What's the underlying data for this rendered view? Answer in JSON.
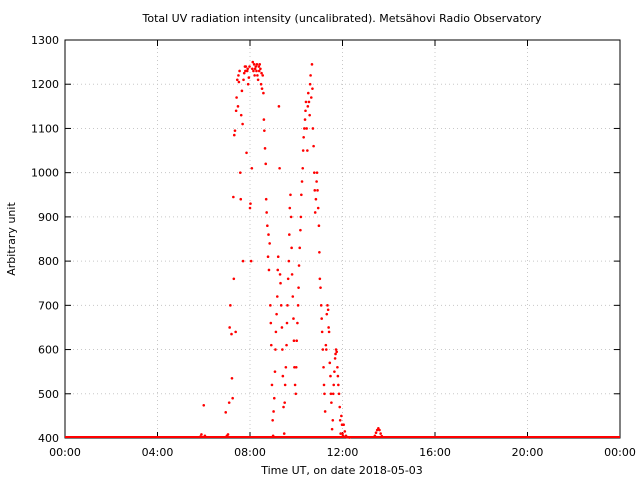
{
  "chart_data": {
    "type": "scatter",
    "title": "Total UV radiation intensity (uncalibrated). Metsähovi Radio Observatory",
    "xlabel": "Time UT, on date 2018-05-03",
    "ylabel": "Arbitrary unit",
    "x_unit": "hour UT",
    "xlim": [
      0,
      24
    ],
    "ylim": [
      400,
      1300
    ],
    "x_ticks": [
      0,
      4,
      8,
      12,
      16,
      20,
      24
    ],
    "x_tick_labels": [
      "00:00",
      "04:00",
      "08:00",
      "12:00",
      "16:00",
      "20:00",
      "00:00"
    ],
    "y_ticks": [
      400,
      500,
      600,
      700,
      800,
      900,
      1000,
      1100,
      1200,
      1300
    ],
    "y_tick_labels": [
      "400",
      "500",
      "600",
      "700",
      "800",
      "900",
      "1000",
      "1100",
      "1200",
      "1300"
    ],
    "grid": true,
    "legend": "none",
    "marker_color": "#ff0000",
    "series": [
      {
        "baseline": {
          "x_range": [
            0,
            24
          ],
          "y": 400
        },
        "points": [
          [
            5.85,
            403
          ],
          [
            5.9,
            408
          ],
          [
            6.0,
            474
          ],
          [
            6.05,
            405
          ],
          [
            6.95,
            458
          ],
          [
            7.0,
            405
          ],
          [
            7.05,
            408
          ],
          [
            7.1,
            480
          ],
          [
            7.12,
            650
          ],
          [
            7.15,
            700
          ],
          [
            7.2,
            635
          ],
          [
            7.22,
            535
          ],
          [
            7.25,
            490
          ],
          [
            7.28,
            945
          ],
          [
            7.3,
            760
          ],
          [
            7.32,
            1085
          ],
          [
            7.35,
            1095
          ],
          [
            7.38,
            640
          ],
          [
            7.4,
            1140
          ],
          [
            7.42,
            1170
          ],
          [
            7.45,
            1210
          ],
          [
            7.48,
            1150
          ],
          [
            7.5,
            1220
          ],
          [
            7.52,
            1205
          ],
          [
            7.55,
            1230
          ],
          [
            7.58,
            1000
          ],
          [
            7.6,
            940
          ],
          [
            7.62,
            1130
          ],
          [
            7.65,
            1185
          ],
          [
            7.68,
            1110
          ],
          [
            7.7,
            800
          ],
          [
            7.72,
            1210
          ],
          [
            7.75,
            1225
          ],
          [
            7.78,
            1240
          ],
          [
            7.8,
            1230
          ],
          [
            7.82,
            1240
          ],
          [
            7.85,
            1045
          ],
          [
            7.88,
            1230
          ],
          [
            7.9,
            1235
          ],
          [
            7.92,
            1200
          ],
          [
            7.95,
            1215
          ],
          [
            7.98,
            1240
          ],
          [
            8.0,
            920
          ],
          [
            8.02,
            930
          ],
          [
            8.05,
            800
          ],
          [
            8.08,
            1010
          ],
          [
            8.1,
            1235
          ],
          [
            8.12,
            1250
          ],
          [
            8.15,
            1230
          ],
          [
            8.18,
            1245
          ],
          [
            8.2,
            1220
          ],
          [
            8.22,
            1235
          ],
          [
            8.25,
            1240
          ],
          [
            8.28,
            1230
          ],
          [
            8.3,
            1245
          ],
          [
            8.32,
            1220
          ],
          [
            8.35,
            1210
          ],
          [
            8.38,
            1240
          ],
          [
            8.4,
            1230
          ],
          [
            8.42,
            1245
          ],
          [
            8.45,
            1235
          ],
          [
            8.48,
            1200
          ],
          [
            8.5,
            1225
          ],
          [
            8.52,
            1190
          ],
          [
            8.55,
            1220
          ],
          [
            8.58,
            1180
          ],
          [
            8.6,
            1120
          ],
          [
            8.62,
            1095
          ],
          [
            8.65,
            1055
          ],
          [
            8.68,
            1020
          ],
          [
            8.7,
            940
          ],
          [
            8.72,
            910
          ],
          [
            8.75,
            880
          ],
          [
            8.78,
            810
          ],
          [
            8.8,
            860
          ],
          [
            8.82,
            780
          ],
          [
            8.85,
            840
          ],
          [
            8.88,
            700
          ],
          [
            8.9,
            660
          ],
          [
            8.92,
            610
          ],
          [
            8.95,
            520
          ],
          [
            8.98,
            440
          ],
          [
            9.0,
            405
          ],
          [
            9.02,
            460
          ],
          [
            9.05,
            490
          ],
          [
            9.08,
            550
          ],
          [
            9.1,
            600
          ],
          [
            9.12,
            640
          ],
          [
            9.15,
            680
          ],
          [
            9.18,
            720
          ],
          [
            9.2,
            780
          ],
          [
            9.22,
            810
          ],
          [
            9.25,
            1150
          ],
          [
            9.28,
            1010
          ],
          [
            9.3,
            770
          ],
          [
            9.32,
            750
          ],
          [
            9.35,
            700
          ],
          [
            9.38,
            650
          ],
          [
            9.4,
            600
          ],
          [
            9.42,
            540
          ],
          [
            9.45,
            470
          ],
          [
            9.48,
            410
          ],
          [
            9.5,
            480
          ],
          [
            9.52,
            520
          ],
          [
            9.55,
            560
          ],
          [
            9.58,
            610
          ],
          [
            9.6,
            660
          ],
          [
            9.62,
            700
          ],
          [
            9.65,
            760
          ],
          [
            9.68,
            800
          ],
          [
            9.7,
            860
          ],
          [
            9.72,
            920
          ],
          [
            9.75,
            950
          ],
          [
            9.78,
            900
          ],
          [
            9.8,
            830
          ],
          [
            9.82,
            770
          ],
          [
            9.85,
            720
          ],
          [
            9.88,
            670
          ],
          [
            9.9,
            620
          ],
          [
            9.92,
            560
          ],
          [
            9.95,
            520
          ],
          [
            9.98,
            500
          ],
          [
            10.0,
            560
          ],
          [
            10.02,
            620
          ],
          [
            10.05,
            660
          ],
          [
            10.08,
            700
          ],
          [
            10.1,
            740
          ],
          [
            10.12,
            790
          ],
          [
            10.15,
            830
          ],
          [
            10.18,
            870
          ],
          [
            10.2,
            900
          ],
          [
            10.22,
            950
          ],
          [
            10.25,
            980
          ],
          [
            10.28,
            1010
          ],
          [
            10.3,
            1050
          ],
          [
            10.32,
            1080
          ],
          [
            10.35,
            1100
          ],
          [
            10.38,
            1120
          ],
          [
            10.4,
            1140
          ],
          [
            10.42,
            1160
          ],
          [
            10.45,
            1100
          ],
          [
            10.48,
            1050
          ],
          [
            10.5,
            1150
          ],
          [
            10.52,
            1180
          ],
          [
            10.55,
            1160
          ],
          [
            10.58,
            1130
          ],
          [
            10.6,
            1200
          ],
          [
            10.62,
            1220
          ],
          [
            10.65,
            1170
          ],
          [
            10.68,
            1245
          ],
          [
            10.7,
            1190
          ],
          [
            10.72,
            1100
          ],
          [
            10.75,
            1060
          ],
          [
            10.78,
            1000
          ],
          [
            10.8,
            960
          ],
          [
            10.82,
            910
          ],
          [
            10.85,
            940
          ],
          [
            10.88,
            980
          ],
          [
            10.9,
            1000
          ],
          [
            10.92,
            960
          ],
          [
            10.95,
            920
          ],
          [
            10.98,
            880
          ],
          [
            11.0,
            820
          ],
          [
            11.02,
            760
          ],
          [
            11.05,
            740
          ],
          [
            11.08,
            700
          ],
          [
            11.1,
            670
          ],
          [
            11.12,
            640
          ],
          [
            11.15,
            600
          ],
          [
            11.18,
            560
          ],
          [
            11.2,
            520
          ],
          [
            11.22,
            500
          ],
          [
            11.25,
            460
          ],
          [
            11.28,
            610
          ],
          [
            11.3,
            600
          ],
          [
            11.32,
            680
          ],
          [
            11.35,
            700
          ],
          [
            11.38,
            690
          ],
          [
            11.4,
            650
          ],
          [
            11.42,
            640
          ],
          [
            11.45,
            570
          ],
          [
            11.48,
            540
          ],
          [
            11.5,
            500
          ],
          [
            11.52,
            480
          ],
          [
            11.55,
            420
          ],
          [
            11.58,
            440
          ],
          [
            11.6,
            500
          ],
          [
            11.62,
            520
          ],
          [
            11.65,
            550
          ],
          [
            11.68,
            580
          ],
          [
            11.7,
            590
          ],
          [
            11.72,
            600
          ],
          [
            11.75,
            595
          ],
          [
            11.78,
            560
          ],
          [
            11.8,
            540
          ],
          [
            11.82,
            520
          ],
          [
            11.85,
            500
          ],
          [
            11.88,
            470
          ],
          [
            11.9,
            440
          ],
          [
            11.92,
            410
          ],
          [
            11.95,
            450
          ],
          [
            11.98,
            430
          ],
          [
            12.0,
            410
          ],
          [
            12.02,
            405
          ],
          [
            12.05,
            430
          ],
          [
            12.1,
            415
          ],
          [
            12.15,
            405
          ],
          [
            12.2,
            402
          ],
          [
            12.3,
            401
          ],
          [
            13.4,
            405
          ],
          [
            13.45,
            412
          ],
          [
            13.5,
            418
          ],
          [
            13.55,
            422
          ],
          [
            13.6,
            418
          ],
          [
            13.65,
            410
          ],
          [
            13.7,
            404
          ]
        ]
      }
    ]
  }
}
